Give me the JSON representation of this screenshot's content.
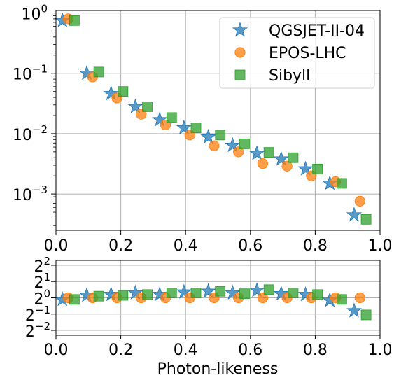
{
  "chart_data": [
    {
      "type": "scatter",
      "panel": "main",
      "title": "",
      "xlabel": "",
      "ylabel": "",
      "xlim": [
        0,
        1
      ],
      "ylim": [
        0.00025,
        1.1
      ],
      "yscale": "log",
      "grid": true,
      "legend": "top-right",
      "x_ticks": [
        "0.0",
        "0.2",
        "0.4",
        "0.6",
        "0.8",
        "1.0"
      ],
      "y_ticks": [
        {
          "value": 1,
          "base": "10",
          "exp": "0"
        },
        {
          "value": 0.1,
          "base": "10",
          "exp": "−1"
        },
        {
          "value": 0.01,
          "base": "10",
          "exp": "−2"
        },
        {
          "value": 0.001,
          "base": "10",
          "exp": "−3"
        }
      ],
      "series": [
        {
          "name": "QGSJET-II-04",
          "marker": "star",
          "color": "#1f77b4",
          "x": [
            0.02,
            0.095,
            0.17,
            0.245,
            0.32,
            0.395,
            0.47,
            0.545,
            0.62,
            0.695,
            0.77,
            0.845,
            0.92
          ],
          "y": [
            0.75,
            0.1,
            0.046,
            0.028,
            0.017,
            0.0125,
            0.0088,
            0.0064,
            0.0047,
            0.0038,
            0.0026,
            0.0015,
            0.00045
          ]
        },
        {
          "name": "EPOS-LHC",
          "marker": "circle",
          "color": "#ff7f0e",
          "x": [
            0.038,
            0.113,
            0.188,
            0.263,
            0.338,
            0.413,
            0.488,
            0.563,
            0.638,
            0.713,
            0.788,
            0.863,
            0.938
          ],
          "y": [
            0.8,
            0.087,
            0.039,
            0.021,
            0.014,
            0.0095,
            0.0063,
            0.005,
            0.0032,
            0.0029,
            0.002,
            0.0016,
            0.00076
          ]
        },
        {
          "name": "Sibyll",
          "marker": "square",
          "color": "#2ca02c",
          "x": [
            0.057,
            0.132,
            0.207,
            0.282,
            0.357,
            0.432,
            0.507,
            0.582,
            0.657,
            0.732,
            0.807,
            0.882,
            0.957
          ],
          "y": [
            0.75,
            0.105,
            0.05,
            0.028,
            0.0185,
            0.0125,
            0.0095,
            0.0068,
            0.0049,
            0.004,
            0.0026,
            0.0015,
            0.00038
          ]
        }
      ]
    },
    {
      "type": "scatter",
      "panel": "ratio",
      "title": "",
      "xlabel": "Photon-likeness",
      "ylabel": "",
      "xlim": [
        0,
        1
      ],
      "yscale": "log2",
      "ylim_exp": [
        -2.3,
        2.3
      ],
      "grid": true,
      "x_ticks": [
        "0.0",
        "0.2",
        "0.4",
        "0.6",
        "0.8",
        "1.0"
      ],
      "y_ticks": [
        {
          "exp_value": 2,
          "base": "2",
          "exp": "2"
        },
        {
          "exp_value": 1,
          "base": "2",
          "exp": "1"
        },
        {
          "exp_value": 0,
          "base": "2",
          "exp": "0"
        },
        {
          "exp_value": -1,
          "base": "2",
          "exp": "−1"
        },
        {
          "exp_value": -2,
          "base": "2",
          "exp": "−2"
        }
      ],
      "series": [
        {
          "name": "QGSJET-II-04",
          "marker": "star",
          "color": "#1f77b4",
          "x": [
            0.02,
            0.095,
            0.17,
            0.245,
            0.32,
            0.395,
            0.47,
            0.545,
            0.62,
            0.695,
            0.77,
            0.845,
            0.92
          ],
          "y_exp": [
            -0.1,
            0.15,
            0.2,
            0.3,
            0.2,
            0.35,
            0.4,
            0.3,
            0.45,
            0.25,
            0.2,
            -0.15,
            -0.8
          ]
        },
        {
          "name": "EPOS-LHC",
          "marker": "circle",
          "color": "#ff7f0e",
          "x": [
            0.038,
            0.113,
            0.188,
            0.263,
            0.338,
            0.413,
            0.488,
            0.563,
            0.638,
            0.713,
            0.788,
            0.863,
            0.938
          ],
          "y_exp": [
            0,
            0,
            0,
            0,
            0,
            0,
            0,
            0,
            0,
            0,
            0,
            0,
            0
          ]
        },
        {
          "name": "Sibyll",
          "marker": "square",
          "color": "#2ca02c",
          "x": [
            0.057,
            0.132,
            0.207,
            0.282,
            0.357,
            0.432,
            0.507,
            0.582,
            0.657,
            0.732,
            0.807,
            0.882,
            0.957
          ],
          "y_exp": [
            -0.1,
            0.1,
            0.15,
            0.2,
            0.3,
            0.3,
            0.4,
            0.25,
            0.5,
            0.3,
            0.2,
            -0.1,
            -1.05
          ]
        }
      ]
    }
  ]
}
